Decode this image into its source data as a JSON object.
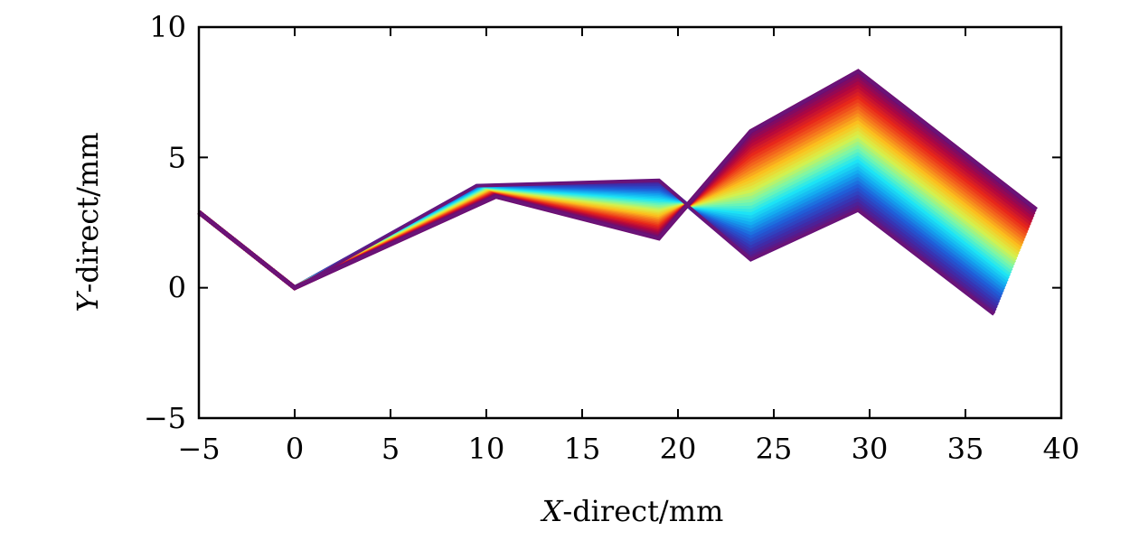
{
  "chart_data": {
    "type": "line",
    "xlabel": {
      "var": "X",
      "rest": "-direct/mm"
    },
    "ylabel": {
      "var": "Y",
      "rest": "-direct/mm"
    },
    "xlim": [
      -5,
      40
    ],
    "ylim": [
      -5,
      10
    ],
    "xticks": [
      -5,
      0,
      5,
      10,
      15,
      20,
      25,
      30,
      35,
      40
    ],
    "yticks": [
      -5,
      0,
      5,
      10
    ],
    "xtick_labels": [
      "−5",
      "0",
      "5",
      "10",
      "15",
      "20",
      "25",
      "30",
      "35",
      "40"
    ],
    "ytick_labels": [
      "−5",
      "0",
      "5",
      "10"
    ],
    "grid": false,
    "legend": "none",
    "colormap": [
      "#66107a",
      "#3a2fae",
      "#1f5fd9",
      "#13a6f0",
      "#1ee6f5",
      "#7cf7a8",
      "#d8f04a",
      "#fbc21e",
      "#f5711d",
      "#e8281a",
      "#b3063d",
      "#6d0d72"
    ],
    "series_count": 40,
    "series": [
      {
        "name": "",
        "x": [
          -5,
          0,
          9.5,
          19.0,
          23.8,
          29.4,
          36.5
        ],
        "y": [
          2.9,
          0,
          3.9,
          4.1,
          1.1,
          3.0,
          -1.0
        ]
      },
      {
        "name": "",
        "x": [
          -5,
          0,
          10.5,
          19.0,
          23.8,
          29.4,
          38.7
        ],
        "y": [
          2.9,
          0,
          3.5,
          1.9,
          6.0,
          8.3,
          3.0
        ]
      }
    ]
  }
}
